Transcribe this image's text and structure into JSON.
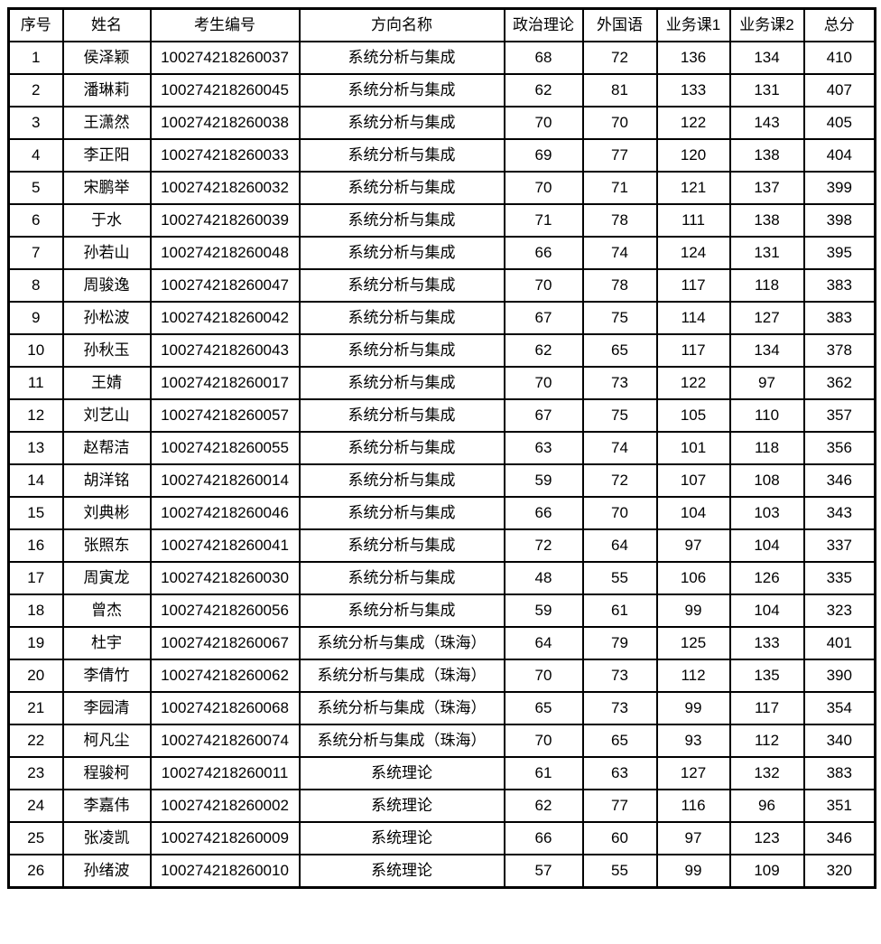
{
  "colors": {
    "border": "#000000",
    "background": "#ffffff",
    "text": "#000000"
  },
  "table": {
    "columns": [
      {
        "key": "index",
        "label": "序号"
      },
      {
        "key": "name",
        "label": "姓名"
      },
      {
        "key": "id",
        "label": "考生编号"
      },
      {
        "key": "direction",
        "label": "方向名称"
      },
      {
        "key": "politics",
        "label": "政治理论"
      },
      {
        "key": "foreign",
        "label": "外国语"
      },
      {
        "key": "course1",
        "label": "业务课1"
      },
      {
        "key": "course2",
        "label": "业务课2"
      },
      {
        "key": "total",
        "label": "总分"
      }
    ],
    "rows": [
      [
        1,
        "侯泽颖",
        "100274218260037",
        "系统分析与集成",
        68,
        72,
        136,
        134,
        410
      ],
      [
        2,
        "潘琳莉",
        "100274218260045",
        "系统分析与集成",
        62,
        81,
        133,
        131,
        407
      ],
      [
        3,
        "王潇然",
        "100274218260038",
        "系统分析与集成",
        70,
        70,
        122,
        143,
        405
      ],
      [
        4,
        "李正阳",
        "100274218260033",
        "系统分析与集成",
        69,
        77,
        120,
        138,
        404
      ],
      [
        5,
        "宋鹏举",
        "100274218260032",
        "系统分析与集成",
        70,
        71,
        121,
        137,
        399
      ],
      [
        6,
        "于水",
        "100274218260039",
        "系统分析与集成",
        71,
        78,
        111,
        138,
        398
      ],
      [
        7,
        "孙若山",
        "100274218260048",
        "系统分析与集成",
        66,
        74,
        124,
        131,
        395
      ],
      [
        8,
        "周骏逸",
        "100274218260047",
        "系统分析与集成",
        70,
        78,
        117,
        118,
        383
      ],
      [
        9,
        "孙松波",
        "100274218260042",
        "系统分析与集成",
        67,
        75,
        114,
        127,
        383
      ],
      [
        10,
        "孙秋玉",
        "100274218260043",
        "系统分析与集成",
        62,
        65,
        117,
        134,
        378
      ],
      [
        11,
        "王婧",
        "100274218260017",
        "系统分析与集成",
        70,
        73,
        122,
        97,
        362
      ],
      [
        12,
        "刘艺山",
        "100274218260057",
        "系统分析与集成",
        67,
        75,
        105,
        110,
        357
      ],
      [
        13,
        "赵帮洁",
        "100274218260055",
        "系统分析与集成",
        63,
        74,
        101,
        118,
        356
      ],
      [
        14,
        "胡洋铭",
        "100274218260014",
        "系统分析与集成",
        59,
        72,
        107,
        108,
        346
      ],
      [
        15,
        "刘典彬",
        "100274218260046",
        "系统分析与集成",
        66,
        70,
        104,
        103,
        343
      ],
      [
        16,
        "张照东",
        "100274218260041",
        "系统分析与集成",
        72,
        64,
        97,
        104,
        337
      ],
      [
        17,
        "周寅龙",
        "100274218260030",
        "系统分析与集成",
        48,
        55,
        106,
        126,
        335
      ],
      [
        18,
        "曾杰",
        "100274218260056",
        "系统分析与集成",
        59,
        61,
        99,
        104,
        323
      ],
      [
        19,
        "杜宇",
        "100274218260067",
        "系统分析与集成（珠海）",
        64,
        79,
        125,
        133,
        401
      ],
      [
        20,
        "李倩竹",
        "100274218260062",
        "系统分析与集成（珠海）",
        70,
        73,
        112,
        135,
        390
      ],
      [
        21,
        "李园清",
        "100274218260068",
        "系统分析与集成（珠海）",
        65,
        73,
        99,
        117,
        354
      ],
      [
        22,
        "柯凡尘",
        "100274218260074",
        "系统分析与集成（珠海）",
        70,
        65,
        93,
        112,
        340
      ],
      [
        23,
        "程骏柯",
        "100274218260011",
        "系统理论",
        61,
        63,
        127,
        132,
        383
      ],
      [
        24,
        "李嘉伟",
        "100274218260002",
        "系统理论",
        62,
        77,
        116,
        96,
        351
      ],
      [
        25,
        "张凌凯",
        "100274218260009",
        "系统理论",
        66,
        60,
        97,
        123,
        346
      ],
      [
        26,
        "孙绪波",
        "100274218260010",
        "系统理论",
        57,
        55,
        99,
        109,
        320
      ]
    ]
  }
}
